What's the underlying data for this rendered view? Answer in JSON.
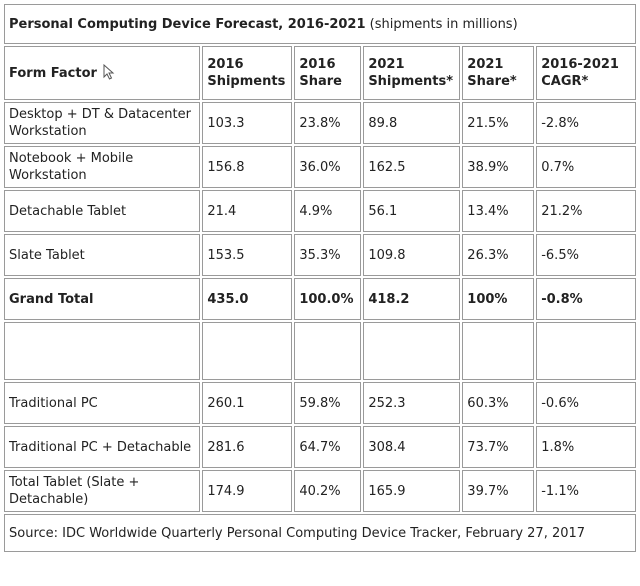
{
  "title": {
    "bold": "Personal Computing Device Forecast, 2016-2021",
    "normal": " (shipments in millions)"
  },
  "headers": {
    "form_factor": "Form Factor",
    "s2016": [
      "2016",
      "Shipments"
    ],
    "share2016": [
      "2016",
      "Share"
    ],
    "s2021": [
      "2021",
      "Shipments*"
    ],
    "share2021": [
      "2021",
      "Share*"
    ],
    "cagr": [
      "2016-2021",
      "CAGR*"
    ]
  },
  "rows": [
    {
      "label": "Desktop + DT & Datacenter Workstation",
      "s2016": "103.3",
      "share2016": "23.8%",
      "s2021": "89.8",
      "share2021": "21.5%",
      "cagr": "-2.8%"
    },
    {
      "label": "Notebook + Mobile Workstation",
      "s2016": "156.8",
      "share2016": "36.0%",
      "s2021": "162.5",
      "share2021": "38.9%",
      "cagr": "0.7%"
    },
    {
      "label": "Detachable Tablet",
      "s2016": "21.4",
      "share2016": "4.9%",
      "s2021": "56.1",
      "share2021": "13.4%",
      "cagr": "21.2%"
    },
    {
      "label": "Slate Tablet",
      "s2016": "153.5",
      "share2016": "35.3%",
      "s2021": "109.8",
      "share2021": "26.3%",
      "cagr": "-6.5%"
    },
    {
      "label": "Grand Total",
      "s2016": "435.0",
      "share2016": "100.0%",
      "s2021": "418.2",
      "share2021": "100%",
      "cagr": "-0.8%"
    },
    {
      "label": "",
      "s2016": "",
      "share2016": "",
      "s2021": "",
      "share2021": "",
      "cagr": ""
    },
    {
      "label": "Traditional PC",
      "s2016": "260.1",
      "share2016": "59.8%",
      "s2021": "252.3",
      "share2021": "60.3%",
      "cagr": "-0.6%"
    },
    {
      "label": "Traditional PC + Detachable",
      "s2016": "281.6",
      "share2016": "64.7%",
      "s2021": "308.4",
      "share2021": "73.7%",
      "cagr": "1.8%"
    },
    {
      "label": "Total Tablet (Slate + Detachable)",
      "s2016": "174.9",
      "share2016": "40.2%",
      "s2021": "165.9",
      "share2021": "39.7%",
      "cagr": "-1.1%"
    }
  ],
  "source": "Source: IDC Worldwide Quarterly Personal Computing Device Tracker, February 27, 2017",
  "icons": {
    "cursor": "mouse-pointer-icon"
  }
}
